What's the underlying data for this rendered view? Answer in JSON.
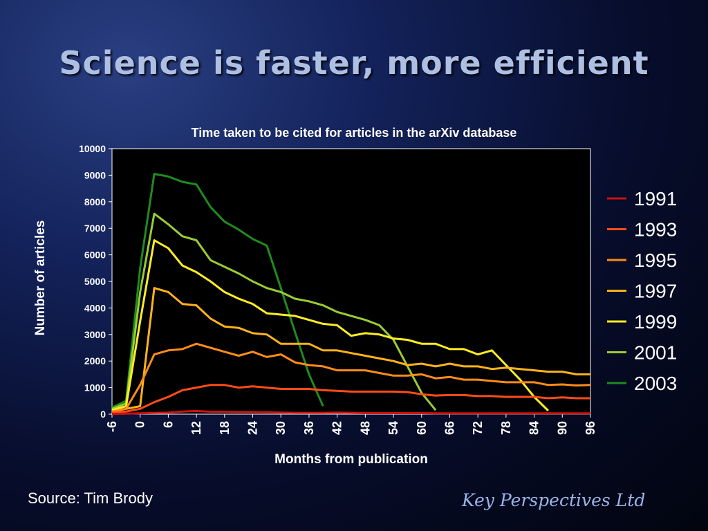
{
  "slide": {
    "title": "Science is faster, more efficient",
    "source": "Source: Tim Brody",
    "brand": "Key Perspectives Ltd"
  },
  "chart_data": {
    "type": "line",
    "title": "Time taken to be cited for articles in the arXiv database",
    "xlabel": "Months from publication",
    "ylabel": "Number of articles",
    "xlim": [
      -6,
      96
    ],
    "ylim": [
      0,
      10000
    ],
    "yticks": [
      0,
      1000,
      2000,
      3000,
      4000,
      5000,
      6000,
      7000,
      8000,
      9000,
      10000
    ],
    "xticks": [
      "-6",
      "0",
      "6",
      "12",
      "18",
      "24",
      "30",
      "36",
      "42",
      "48",
      "54",
      "60",
      "66",
      "72",
      "78",
      "84",
      "90",
      "96"
    ],
    "grid": false,
    "legend_position": "right",
    "series": [
      {
        "name": "1991",
        "color": "#cc1111",
        "x": [
          -6,
          -3,
          0,
          3,
          6,
          9,
          12,
          15,
          18,
          21,
          24,
          27,
          30,
          33,
          36,
          39,
          42,
          45,
          48,
          51,
          54,
          57,
          60,
          63,
          66,
          69,
          72,
          75,
          78,
          81,
          84,
          87,
          90,
          93,
          96
        ],
        "y": [
          10,
          20,
          30,
          50,
          60,
          100,
          120,
          90,
          90,
          80,
          80,
          70,
          60,
          50,
          50,
          50,
          60,
          50,
          40,
          40,
          40,
          40,
          40,
          30,
          30,
          30,
          30,
          30,
          30,
          30,
          30,
          30,
          30,
          30,
          30
        ]
      },
      {
        "name": "1993",
        "color": "#ff4c1a",
        "x": [
          -6,
          -3,
          0,
          3,
          6,
          9,
          12,
          15,
          18,
          21,
          24,
          27,
          30,
          33,
          36,
          39,
          42,
          45,
          48,
          51,
          54,
          57,
          60,
          63,
          66,
          69,
          72,
          75,
          78,
          81,
          84,
          87,
          90,
          93,
          96
        ],
        "y": [
          50,
          100,
          200,
          450,
          650,
          900,
          1000,
          1100,
          1100,
          1000,
          1050,
          1000,
          950,
          950,
          950,
          900,
          880,
          850,
          850,
          850,
          850,
          830,
          750,
          700,
          720,
          720,
          680,
          680,
          650,
          650,
          650,
          600,
          630,
          600,
          600
        ]
      },
      {
        "name": "1995",
        "color": "#ff8c1a",
        "x": [
          -6,
          -3,
          0,
          3,
          6,
          9,
          12,
          15,
          18,
          21,
          24,
          27,
          30,
          33,
          36,
          39,
          42,
          45,
          48,
          51,
          54,
          57,
          60,
          63,
          66,
          69,
          72,
          75,
          78,
          81,
          84,
          87,
          90,
          93,
          96
        ],
        "y": [
          100,
          200,
          1100,
          2250,
          2400,
          2450,
          2650,
          2500,
          2350,
          2200,
          2350,
          2150,
          2250,
          1950,
          1850,
          1800,
          1650,
          1650,
          1650,
          1550,
          1450,
          1450,
          1500,
          1350,
          1400,
          1300,
          1300,
          1250,
          1200,
          1200,
          1200,
          1100,
          1120,
          1080,
          1100
        ]
      },
      {
        "name": "1997",
        "color": "#ffb319",
        "x": [
          -6,
          -3,
          0,
          3,
          6,
          9,
          12,
          15,
          18,
          21,
          24,
          27,
          30,
          33,
          36,
          39,
          42,
          45,
          48,
          51,
          54,
          57,
          60,
          63,
          66,
          69,
          72,
          75,
          78,
          81,
          84,
          87,
          90,
          93,
          96
        ],
        "y": [
          100,
          200,
          300,
          4750,
          4600,
          4150,
          4100,
          3600,
          3300,
          3250,
          3050,
          3000,
          2650,
          2650,
          2650,
          2400,
          2400,
          2300,
          2200,
          2100,
          2000,
          1850,
          1900,
          1800,
          1900,
          1800,
          1800,
          1700,
          1750,
          1700,
          1650,
          1600,
          1600,
          1500,
          1500
        ]
      },
      {
        "name": "1999",
        "color": "#ffee22",
        "x": [
          -6,
          -3,
          0,
          3,
          6,
          9,
          12,
          15,
          18,
          21,
          24,
          27,
          30,
          33,
          36,
          39,
          42,
          45,
          48,
          51,
          54,
          57,
          60,
          63,
          66,
          69,
          72,
          75,
          78,
          81,
          84,
          87
        ],
        "y": [
          150,
          300,
          3500,
          6550,
          6250,
          5600,
          5350,
          5000,
          4600,
          4350,
          4150,
          3800,
          3750,
          3700,
          3550,
          3400,
          3350,
          2950,
          3050,
          3000,
          2850,
          2800,
          2650,
          2650,
          2450,
          2450,
          2250,
          2400,
          1850,
          1300,
          650,
          130
        ]
      },
      {
        "name": "2001",
        "color": "#9acd32",
        "x": [
          -6,
          -3,
          0,
          3,
          6,
          9,
          12,
          15,
          18,
          21,
          24,
          27,
          30,
          33,
          36,
          39,
          42,
          45,
          48,
          51,
          54,
          57,
          60,
          63
        ],
        "y": [
          200,
          400,
          4600,
          7550,
          7150,
          6700,
          6550,
          5800,
          5550,
          5300,
          5000,
          4750,
          4600,
          4350,
          4250,
          4100,
          3850,
          3700,
          3550,
          3350,
          2800,
          1800,
          800,
          150
        ]
      },
      {
        "name": "2003",
        "color": "#1f8c1f",
        "x": [
          -6,
          -3,
          0,
          3,
          6,
          9,
          12,
          15,
          18,
          21,
          24,
          27,
          30,
          33,
          36,
          39
        ],
        "y": [
          250,
          500,
          5500,
          9050,
          8950,
          8750,
          8650,
          7800,
          7250,
          6950,
          6600,
          6350,
          4750,
          3100,
          1500,
          300
        ]
      }
    ]
  }
}
